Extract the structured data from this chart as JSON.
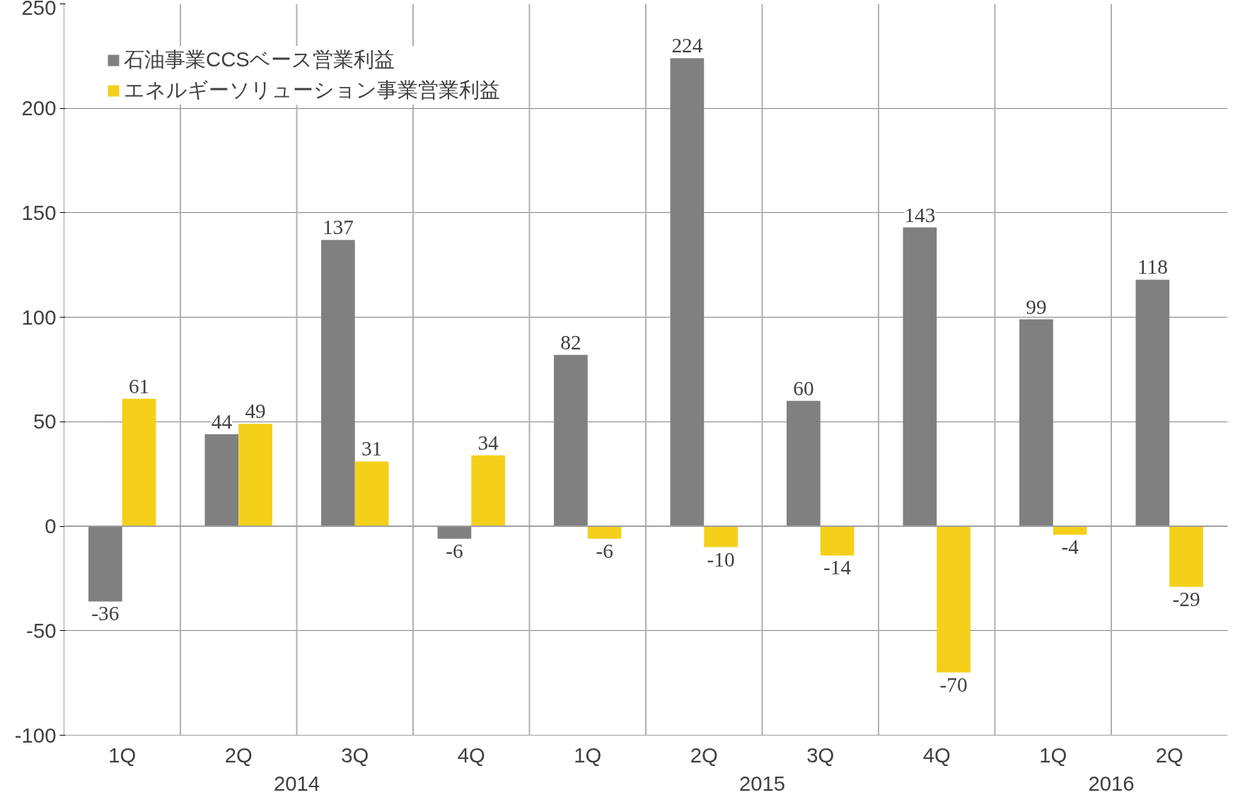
{
  "chart_data": {
    "type": "bar",
    "categories": [
      "1Q",
      "2Q",
      "3Q",
      "4Q",
      "1Q",
      "2Q",
      "3Q",
      "4Q",
      "1Q",
      "2Q"
    ],
    "annotations": [
      "2014",
      "2015",
      "2016"
    ],
    "series": [
      {
        "name": "石油事業CCSベース営業利益",
        "color": "#808080",
        "values": [
          -36,
          44,
          137,
          -6,
          82,
          224,
          60,
          143,
          99,
          118
        ]
      },
      {
        "name": "エネルギーソリューション事業営業利益",
        "color": "#f5d01a",
        "values": [
          61,
          49,
          31,
          34,
          -6,
          -10,
          -14,
          -70,
          -4,
          -29
        ]
      }
    ],
    "ylim": [
      -100,
      250
    ],
    "yticks": [
      -100,
      -50,
      0,
      50,
      100,
      150,
      200,
      250
    ],
    "grid": true,
    "legend": "top left",
    "data_labels": true
  }
}
